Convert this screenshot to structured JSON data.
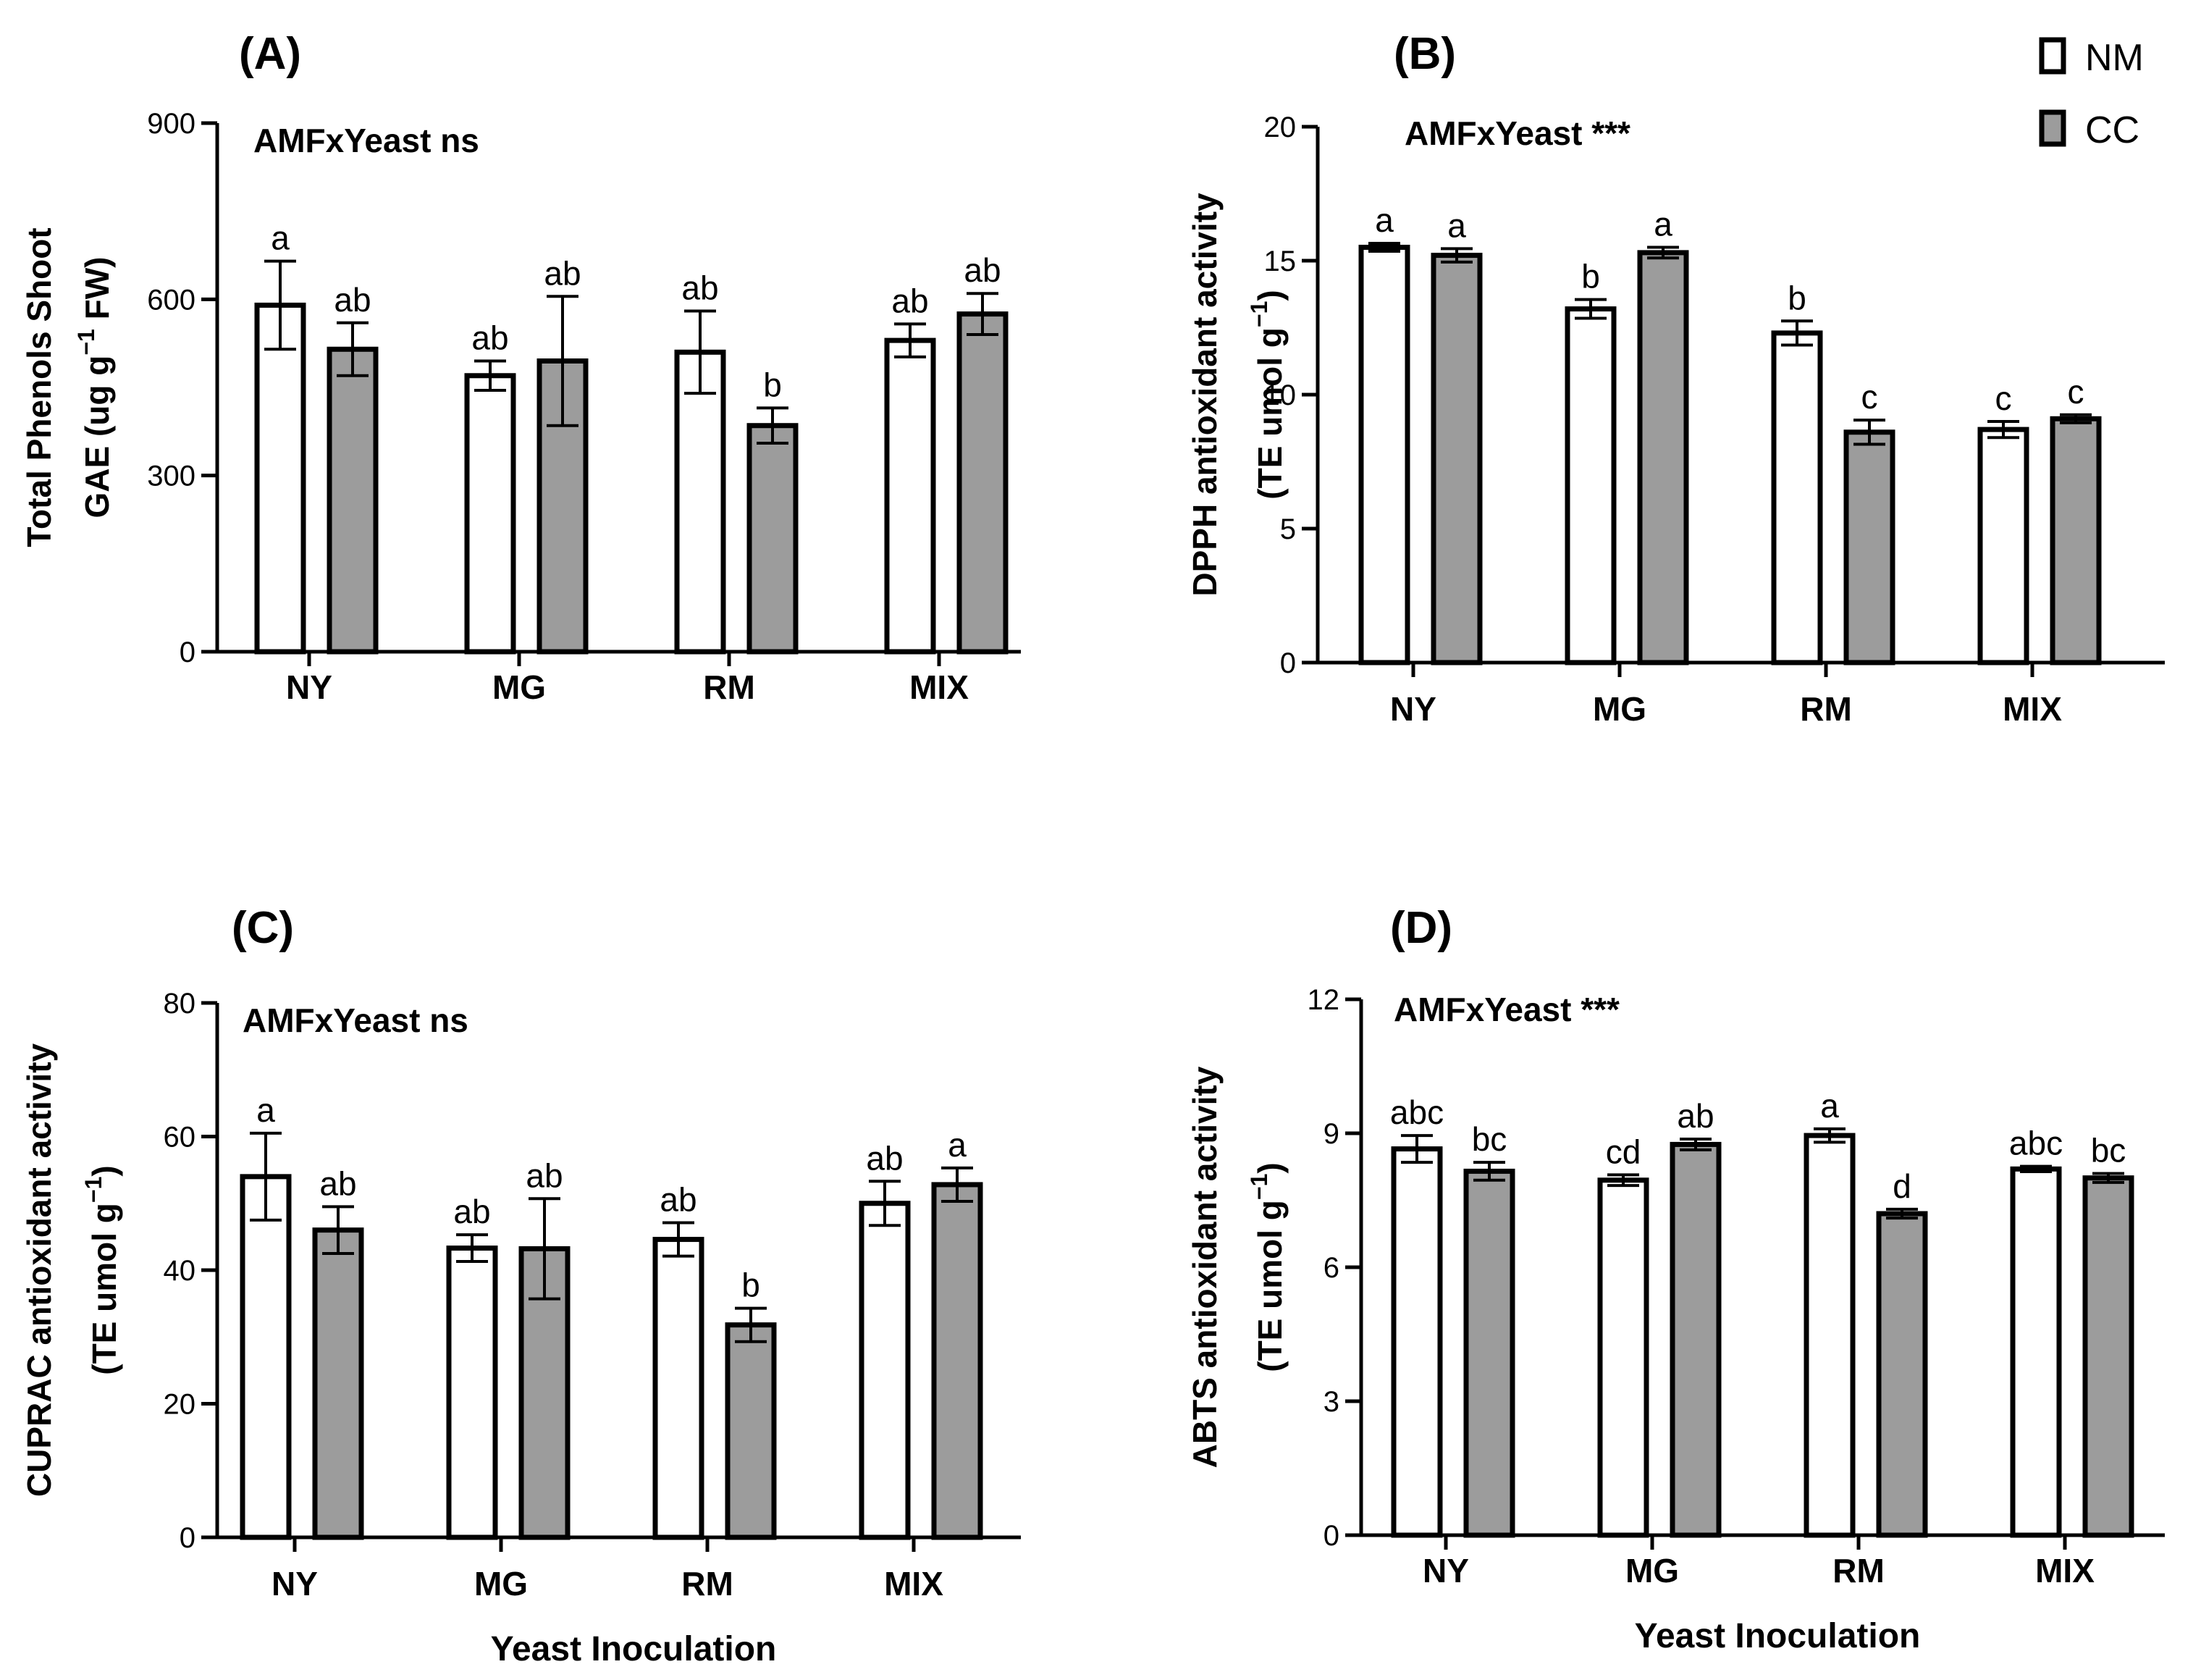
{
  "chart_data": [
    {
      "panel": "(A)",
      "type": "bar",
      "annotation": "AMFxYeast ns",
      "ylabel_line1": "Total Phenols Shoot",
      "ylabel_line2_pre": "GAE (ug g",
      "ylabel_line2_sup": "−1",
      "ylabel_line2_post": " FW)",
      "xlabel": "",
      "ylim": [
        0,
        900
      ],
      "yticks": [
        "0",
        "300",
        "600",
        "900"
      ],
      "categories": [
        "NY",
        "MG",
        "RM",
        "MIX"
      ],
      "series": [
        {
          "name": "NM",
          "values": [
            590,
            470,
            510,
            530
          ],
          "errors": [
            75,
            25,
            70,
            28
          ],
          "letters": [
            "a",
            "ab",
            "ab",
            "ab"
          ]
        },
        {
          "name": "CC",
          "values": [
            515,
            495,
            385,
            575
          ],
          "errors": [
            45,
            110,
            30,
            35
          ],
          "letters": [
            "ab",
            "ab",
            "b",
            "ab"
          ]
        }
      ]
    },
    {
      "panel": "(B)",
      "type": "bar",
      "annotation": "AMFxYeast ***",
      "ylabel_line1": "DPPH antioxidant activity",
      "ylabel_line2_pre": "(TE umol g",
      "ylabel_line2_sup": "−1",
      "ylabel_line2_post": ")",
      "xlabel": "",
      "ylim": [
        0,
        20
      ],
      "yticks": [
        "0",
        "5",
        "10",
        "15",
        "20"
      ],
      "categories": [
        "NY",
        "MG",
        "RM",
        "MIX"
      ],
      "series": [
        {
          "name": "NM",
          "values": [
            15.5,
            13.2,
            12.3,
            8.7
          ],
          "errors": [
            0.15,
            0.35,
            0.45,
            0.3
          ],
          "letters": [
            "a",
            "b",
            "b",
            "c"
          ]
        },
        {
          "name": "CC",
          "values": [
            15.2,
            15.3,
            8.6,
            9.1
          ],
          "errors": [
            0.25,
            0.2,
            0.45,
            0.15
          ],
          "letters": [
            "a",
            "a",
            "c",
            "c"
          ]
        }
      ]
    },
    {
      "panel": "(C)",
      "type": "bar",
      "annotation": "AMFxYeast ns",
      "ylabel_line1": "CUPRAC antioxidant activity",
      "ylabel_line2_pre": "(TE umol g",
      "ylabel_line2_sup": "−1",
      "ylabel_line2_post": ")",
      "xlabel": "Yeast Inoculation",
      "ylim": [
        0,
        80
      ],
      "yticks": [
        "0",
        "20",
        "40",
        "60",
        "80"
      ],
      "categories": [
        "NY",
        "MG",
        "RM",
        "MIX"
      ],
      "series": [
        {
          "name": "NM",
          "values": [
            54,
            43.3,
            44.6,
            50
          ],
          "errors": [
            6.5,
            2,
            2.5,
            3.3
          ],
          "letters": [
            "a",
            "ab",
            "ab",
            "ab"
          ]
        },
        {
          "name": "CC",
          "values": [
            46,
            43.2,
            31.8,
            52.8
          ],
          "errors": [
            3.5,
            7.5,
            2.5,
            2.5
          ],
          "letters": [
            "ab",
            "ab",
            "b",
            "a"
          ]
        }
      ]
    },
    {
      "panel": "(D)",
      "type": "bar",
      "annotation": "AMFxYeast ***",
      "ylabel_line1": "ABTS antioxidant activity",
      "ylabel_line2_pre": "(TE umol g",
      "ylabel_line2_sup": "−1",
      "ylabel_line2_post": ")",
      "xlabel": "Yeast Inoculation",
      "ylim": [
        0,
        12
      ],
      "yticks": [
        "0",
        "3",
        "6",
        "9",
        "12"
      ],
      "categories": [
        "NY",
        "MG",
        "RM",
        "MIX"
      ],
      "series": [
        {
          "name": "NM",
          "values": [
            8.65,
            7.95,
            8.95,
            8.2
          ],
          "errors": [
            0.3,
            0.12,
            0.15,
            0.06
          ],
          "letters": [
            "abc",
            "cd",
            "a",
            "abc"
          ]
        },
        {
          "name": "CC",
          "values": [
            8.15,
            8.75,
            7.2,
            8.0
          ],
          "errors": [
            0.2,
            0.12,
            0.1,
            0.1
          ],
          "letters": [
            "bc",
            "ab",
            "d",
            "bc"
          ]
        }
      ]
    }
  ],
  "legend": [
    {
      "name": "NM",
      "color": "#ffffff"
    },
    {
      "name": "CC",
      "color": "#9c9c9c"
    }
  ],
  "colors": {
    "nm_fill": "#ffffff",
    "cc_fill": "#9c9c9c",
    "stroke": "#000000"
  }
}
